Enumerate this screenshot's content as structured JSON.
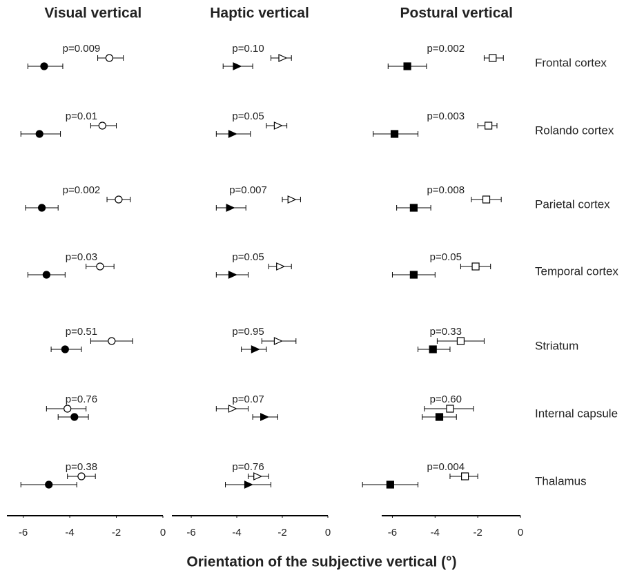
{
  "chart_data": [
    {
      "type": "forest",
      "title": "Visual vertical",
      "marker": "circle",
      "xlim": [
        -6.7,
        0
      ],
      "xticks": [
        -6,
        -4,
        -2,
        0
      ],
      "annotations": [
        "p=0.009",
        "p=0.01",
        "p=0.002",
        "p=0.03",
        "p=0.51",
        "p=0.76",
        "p=0.38"
      ],
      "series": [
        {
          "color": "#ffffff",
          "values": [
            -2.3,
            -2.6,
            -1.9,
            -2.7,
            -2.2,
            -4.1,
            -3.5
          ],
          "lower": [
            -2.8,
            -3.1,
            -2.4,
            -3.3,
            -3.1,
            -5.0,
            -4.1
          ],
          "upper": [
            -1.7,
            -2.0,
            -1.4,
            -2.1,
            -1.3,
            -3.3,
            -2.9
          ]
        },
        {
          "color": "#000000",
          "values": [
            -5.1,
            -5.3,
            -5.2,
            -5.0,
            -4.2,
            -3.8,
            -4.9
          ],
          "lower": [
            -5.8,
            -6.1,
            -5.9,
            -5.8,
            -4.8,
            -4.5,
            -6.1
          ],
          "upper": [
            -4.3,
            -4.4,
            -4.5,
            -4.2,
            -3.5,
            -3.2,
            -3.7
          ]
        }
      ]
    },
    {
      "type": "forest",
      "title": "Haptic vertical",
      "marker": "triangle",
      "xlabel": "Orientation of the subjective vertical (°)",
      "xlim": [
        -6.85,
        0
      ],
      "xticks": [
        -6,
        -4,
        -2,
        0
      ],
      "annotations": [
        "p=0.10",
        "p=0.05",
        "p=0.007",
        "p=0.05",
        "p=0.95",
        "p=0.07",
        "p=0.76"
      ],
      "series": [
        {
          "color": "#ffffff",
          "values": [
            -2.0,
            -2.2,
            -1.6,
            -2.1,
            -2.2,
            -4.2,
            -3.1
          ],
          "lower": [
            -2.5,
            -2.7,
            -2.0,
            -2.6,
            -2.9,
            -4.9,
            -3.5
          ],
          "upper": [
            -1.6,
            -1.8,
            -1.2,
            -1.6,
            -1.4,
            -3.5,
            -2.6
          ]
        },
        {
          "color": "#000000",
          "values": [
            -4.0,
            -4.2,
            -4.3,
            -4.2,
            -3.2,
            -2.8,
            -3.5
          ],
          "lower": [
            -4.6,
            -4.9,
            -4.9,
            -4.9,
            -3.8,
            -3.3,
            -4.5
          ],
          "upper": [
            -3.3,
            -3.4,
            -3.6,
            -3.5,
            -2.7,
            -2.2,
            -2.5
          ]
        }
      ]
    },
    {
      "type": "forest",
      "title": "Postural vertical",
      "marker": "square",
      "categories": [
        "Frontal cortex",
        "Rolando cortex",
        "Parietal cortex",
        "Temporal cortex",
        "Striatum",
        "Internal capsule",
        "Thalamus"
      ],
      "xlim": [
        -6.5,
        0
      ],
      "xticks": [
        -6,
        -4,
        -2,
        0
      ],
      "annotations": [
        "p=0.002",
        "p=0.003",
        "p=0.008",
        "p=0.05",
        "p=0.33",
        "p=0.60",
        "p=0.004"
      ],
      "series": [
        {
          "color": "#ffffff",
          "values": [
            -1.3,
            -1.5,
            -1.6,
            -2.1,
            -2.8,
            -3.3,
            -2.6
          ],
          "lower": [
            -1.7,
            -2.0,
            -2.3,
            -2.8,
            -3.9,
            -4.5,
            -3.3
          ],
          "upper": [
            -0.8,
            -1.1,
            -0.9,
            -1.4,
            -1.7,
            -2.2,
            -2.0
          ]
        },
        {
          "color": "#000000",
          "values": [
            -5.3,
            -5.9,
            -5.0,
            -5.0,
            -4.1,
            -3.8,
            -6.1
          ],
          "lower": [
            -6.2,
            -6.9,
            -5.8,
            -6.0,
            -4.8,
            -4.6,
            -7.4
          ],
          "upper": [
            -4.4,
            -4.8,
            -4.2,
            -4.0,
            -3.3,
            -3.0,
            -4.8
          ]
        }
      ]
    }
  ]
}
